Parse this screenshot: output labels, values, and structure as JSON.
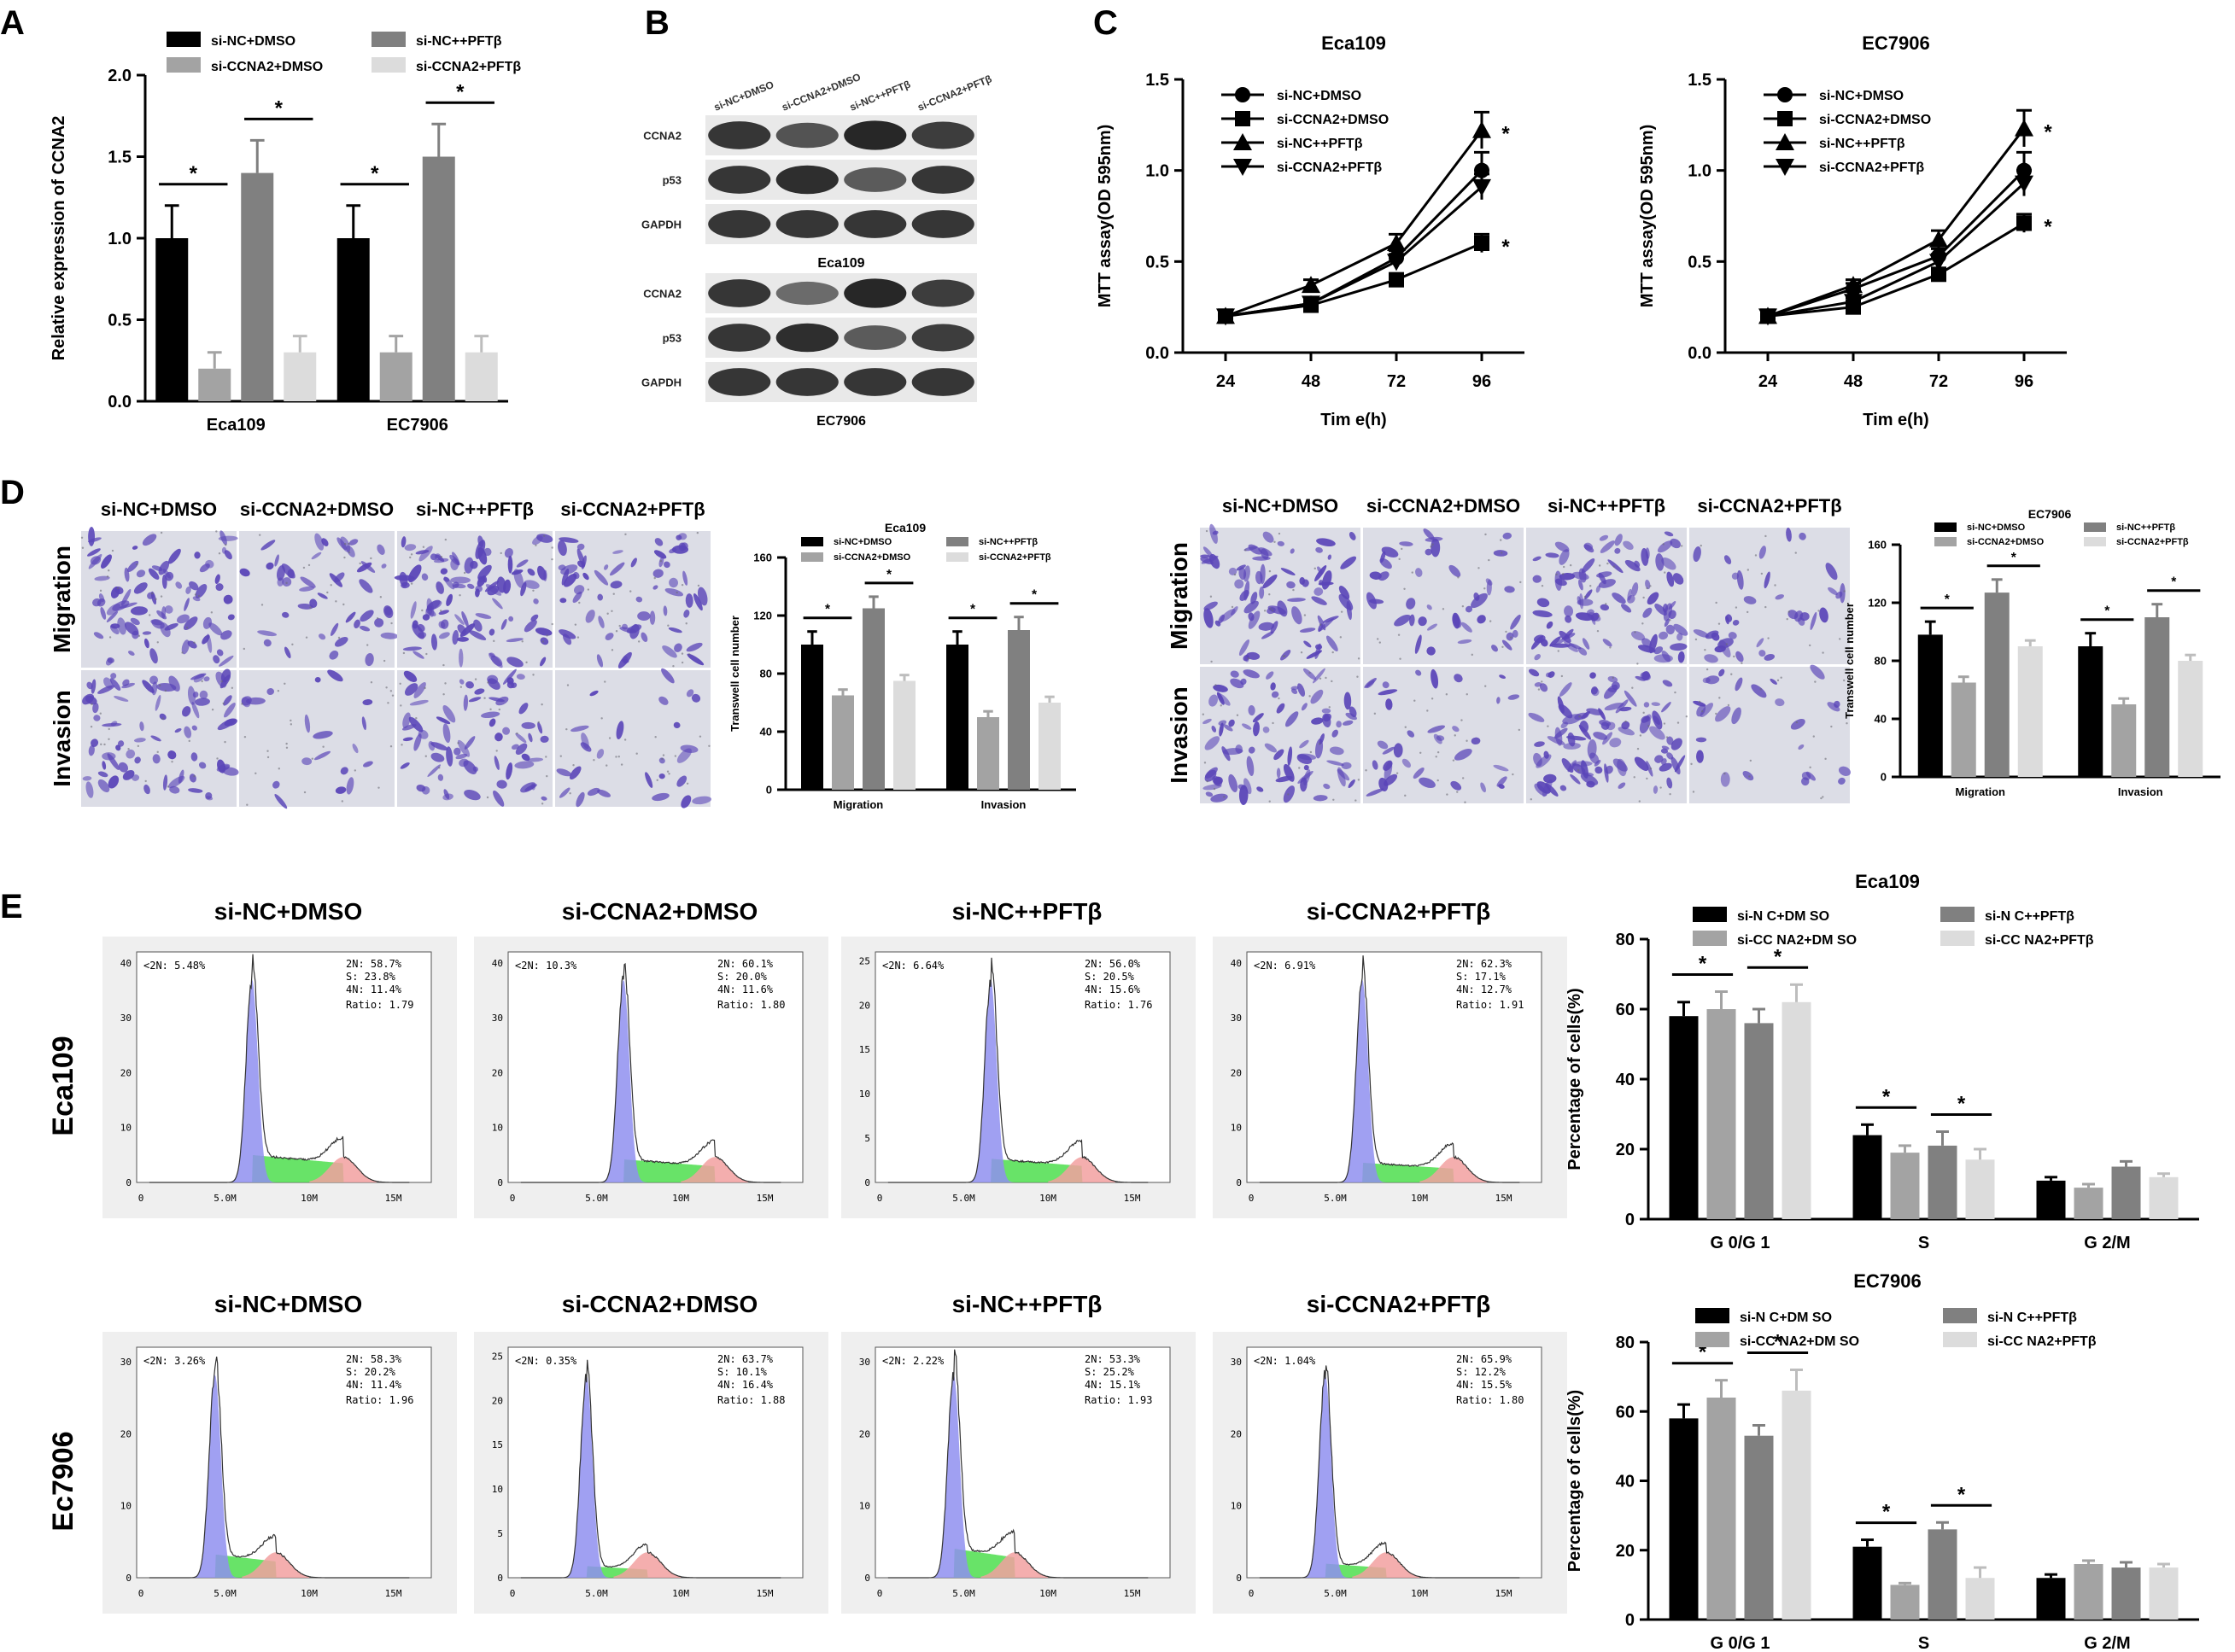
{
  "panel_labels": [
    "A",
    "B",
    "C",
    "D",
    "E"
  ],
  "colors": {
    "si_nc_dmso": "#000000",
    "si_ccna2_dmso": "#a3a3a3",
    "si_nc_pft": "#808080",
    "si_ccna2_pft": "#dcdcdc",
    "g0g1_fill": "#8f8ff0",
    "s_fill": "#4ede4e",
    "g2m_fill": "#f2a0a0",
    "micro_bg": "#dcdde6",
    "micro_stain": "#5a45b8",
    "blot_bg": "#e9e9e9",
    "blot_band": "#1e1e1e"
  },
  "groups": [
    "si-NC+DMSO",
    "si-CCNA2+DMSO",
    "si-NC++PFTβ",
    "si-CCNA2+PFTβ"
  ],
  "western": {
    "lane_labels": [
      "si-NC+DMSO",
      "si-CCNA2+DMSO",
      "si-NC++PFTβ",
      "si-CCNA2+PFTβ"
    ],
    "blocks": [
      {
        "cell": "Eca109",
        "rows": [
          {
            "protein": "CCNA2",
            "intensity": [
              0.85,
              0.65,
              0.95,
              0.8
            ]
          },
          {
            "protein": "p53",
            "intensity": [
              0.85,
              0.9,
              0.6,
              0.85
            ]
          },
          {
            "protein": "GAPDH",
            "intensity": [
              0.85,
              0.85,
              0.85,
              0.85
            ]
          }
        ]
      },
      {
        "cell": "EC7906",
        "rows": [
          {
            "protein": "CCNA2",
            "intensity": [
              0.85,
              0.5,
              0.95,
              0.8
            ]
          },
          {
            "protein": "p53",
            "intensity": [
              0.85,
              0.9,
              0.6,
              0.8
            ]
          },
          {
            "protein": "GAPDH",
            "intensity": [
              0.85,
              0.85,
              0.85,
              0.85
            ]
          }
        ]
      }
    ]
  },
  "micro": {
    "row_labels": [
      "Migration",
      "Invasion"
    ],
    "densities": {
      "Eca109": [
        [
          0.75,
          0.35,
          0.9,
          0.55
        ],
        [
          0.7,
          0.08,
          0.6,
          0.15
        ]
      ],
      "EC7906": [
        [
          0.7,
          0.3,
          0.85,
          0.25
        ],
        [
          0.75,
          0.25,
          0.9,
          0.15
        ]
      ]
    }
  },
  "flow": {
    "x_ticks": [
      "0",
      "5.0M",
      "10M",
      "15M"
    ],
    "subset_label": "<2N:",
    "panels": {
      "Eca109": [
        {
          "sub": "5.48%",
          "n2": "58.7%",
          "s": "23.8%",
          "n4": "11.4%",
          "ratio": "1.79",
          "yticks": [
            "0",
            "10",
            "20",
            "30",
            "40"
          ],
          "ymax": 42
        },
        {
          "sub": "10.3%",
          "n2": "60.1%",
          "s": "20.0%",
          "n4": "11.6%",
          "ratio": "1.80",
          "yticks": [
            "0",
            "10",
            "20",
            "30",
            "40"
          ],
          "ymax": 42
        },
        {
          "sub": "6.64%",
          "n2": "56.0%",
          "s": "20.5%",
          "n4": "15.6%",
          "ratio": "1.76",
          "yticks": [
            "0",
            "5",
            "10",
            "15",
            "20",
            "25"
          ],
          "ymax": 26
        },
        {
          "sub": "6.91%",
          "n2": "62.3%",
          "s": "17.1%",
          "n4": "12.7%",
          "ratio": "1.91",
          "yticks": [
            "0",
            "10",
            "20",
            "30",
            "40"
          ],
          "ymax": 42
        }
      ],
      "EC7906": [
        {
          "sub": "3.26%",
          "n2": "58.3%",
          "s": "20.2%",
          "n4": "11.4%",
          "ratio": "1.96",
          "yticks": [
            "0",
            "10",
            "20",
            "30"
          ],
          "ymax": 32
        },
        {
          "sub": "0.35%",
          "n2": "63.7%",
          "s": "10.1%",
          "n4": "16.4%",
          "ratio": "1.88",
          "yticks": [
            "0",
            "5",
            "10",
            "15",
            "20",
            "25"
          ],
          "ymax": 26
        },
        {
          "sub": "2.22%",
          "n2": "53.3%",
          "s": "25.2%",
          "n4": "15.1%",
          "ratio": "1.93",
          "yticks": [
            "0",
            "10",
            "20",
            "30"
          ],
          "ymax": 32
        },
        {
          "sub": "1.04%",
          "n2": "65.9%",
          "s": "12.2%",
          "n4": "15.5%",
          "ratio": "1.80",
          "yticks": [
            "0",
            "10",
            "20",
            "30"
          ],
          "ymax": 32
        }
      ]
    },
    "row_labels": {
      "Eca109": "Eca109",
      "EC7906": "Ec7906"
    }
  },
  "chart_data": [
    {
      "id": "A",
      "type": "bar",
      "title": "",
      "ylabel": "Relative  expression  of  CCNA2",
      "xlabel": "",
      "categories": [
        "Eca109",
        "EC7906"
      ],
      "series": [
        {
          "name": "si-NC+DMSO",
          "values": [
            1.0,
            1.0
          ],
          "errors": [
            0.2,
            0.2
          ]
        },
        {
          "name": "si-CCNA2+DMSO",
          "values": [
            0.2,
            0.3
          ],
          "errors": [
            0.1,
            0.1
          ]
        },
        {
          "name": "si-NC++PFTβ",
          "values": [
            1.4,
            1.5
          ],
          "errors": [
            0.2,
            0.2
          ]
        },
        {
          "name": "si-CCNA2+PFTβ",
          "values": [
            0.3,
            0.3
          ],
          "errors": [
            0.1,
            0.1
          ]
        }
      ],
      "ylim": [
        0,
        2.0
      ],
      "yticks": [
        "0.0",
        "0.5",
        "1.0",
        "1.5",
        "2.0"
      ],
      "significance": [
        [
          0,
          0,
          1,
          "*"
        ],
        [
          0,
          2,
          3,
          "*"
        ],
        [
          1,
          0,
          1,
          "*"
        ],
        [
          1,
          2,
          3,
          "*"
        ]
      ],
      "legend": "top"
    },
    {
      "id": "C1",
      "type": "line",
      "title": "Eca109",
      "xlabel": "Tim e(h)",
      "ylabel": "MTT  assay(OD  595nm)",
      "x": [
        "24",
        "48",
        "72",
        "96"
      ],
      "series": [
        {
          "name": "si-NC+DMSO",
          "marker": "circle",
          "values": [
            0.2,
            0.27,
            0.52,
            1.0
          ],
          "errors": [
            0.01,
            0.02,
            0.04,
            0.1
          ]
        },
        {
          "name": "si-CCNA2+DMSO",
          "marker": "square",
          "values": [
            0.2,
            0.26,
            0.4,
            0.6
          ],
          "errors": [
            0.01,
            0.02,
            0.03,
            0.05
          ]
        },
        {
          "name": "si-NC++PFTβ",
          "marker": "triangle",
          "values": [
            0.2,
            0.37,
            0.6,
            1.22
          ],
          "errors": [
            0.01,
            0.03,
            0.05,
            0.1
          ]
        },
        {
          "name": "si-CCNA2+PFTβ",
          "marker": "triangle-down",
          "values": [
            0.2,
            0.27,
            0.5,
            0.91
          ],
          "errors": [
            0.01,
            0.02,
            0.04,
            0.07
          ]
        }
      ],
      "ylim": [
        0,
        1.5
      ],
      "yticks": [
        "0.0",
        "0.5",
        "1.0",
        "1.5"
      ],
      "annotations": [
        {
          "series": 2,
          "text": "*"
        },
        {
          "series": 1,
          "text": "*"
        }
      ],
      "legend": "top-left"
    },
    {
      "id": "C2",
      "type": "line",
      "title": "EC7906",
      "xlabel": "Tim e(h)",
      "ylabel": "MTT  assay(OD  595nm)",
      "x": [
        "24",
        "48",
        "72",
        "96"
      ],
      "series": [
        {
          "name": "si-NC+DMSO",
          "marker": "circle",
          "values": [
            0.2,
            0.35,
            0.53,
            1.0
          ],
          "errors": [
            0.01,
            0.03,
            0.04,
            0.1
          ]
        },
        {
          "name": "si-CCNA2+DMSO",
          "marker": "square",
          "values": [
            0.2,
            0.25,
            0.43,
            0.71
          ],
          "errors": [
            0.01,
            0.02,
            0.03,
            0.05
          ]
        },
        {
          "name": "si-NC++PFTβ",
          "marker": "triangle",
          "values": [
            0.2,
            0.37,
            0.62,
            1.23
          ],
          "errors": [
            0.01,
            0.03,
            0.05,
            0.1
          ]
        },
        {
          "name": "si-CCNA2+PFTβ",
          "marker": "triangle-down",
          "values": [
            0.2,
            0.28,
            0.5,
            0.93
          ],
          "errors": [
            0.01,
            0.02,
            0.04,
            0.07
          ]
        }
      ],
      "ylim": [
        0,
        1.5
      ],
      "yticks": [
        "0.0",
        "0.5",
        "1.0",
        "1.5"
      ],
      "annotations": [
        {
          "series": 2,
          "text": "*"
        },
        {
          "series": 1,
          "text": "*"
        }
      ],
      "legend": "top-left"
    },
    {
      "id": "D1",
      "type": "bar",
      "title": "Eca109",
      "ylabel": "Transwell cell number",
      "xlabel": "",
      "categories": [
        "Migration",
        "Invasion"
      ],
      "series": [
        {
          "name": "si-NC+DMSO",
          "values": [
            100,
            100
          ],
          "errors": [
            9,
            9
          ]
        },
        {
          "name": "si-CCNA2+DMSO",
          "values": [
            65,
            50
          ],
          "errors": [
            4,
            4
          ]
        },
        {
          "name": "si-NC++PFTβ",
          "values": [
            125,
            110
          ],
          "errors": [
            8,
            9
          ]
        },
        {
          "name": "si-CCNA2+PFTβ",
          "values": [
            75,
            60
          ],
          "errors": [
            4,
            4
          ]
        }
      ],
      "ylim": [
        0,
        160
      ],
      "yticks": [
        "0",
        "40",
        "80",
        "120",
        "160"
      ],
      "significance": [
        [
          0,
          0,
          1,
          "*"
        ],
        [
          0,
          2,
          3,
          "*"
        ],
        [
          1,
          0,
          1,
          "*"
        ],
        [
          1,
          2,
          3,
          "*"
        ]
      ],
      "legend": "top"
    },
    {
      "id": "D2",
      "type": "bar",
      "title": "EC7906",
      "ylabel": "Transwell cell number",
      "xlabel": "",
      "categories": [
        "Migration",
        "Invasion"
      ],
      "series": [
        {
          "name": "si-NC+DMSO",
          "values": [
            98,
            90
          ],
          "errors": [
            9,
            9
          ]
        },
        {
          "name": "si-CCNA2+DMSO",
          "values": [
            65,
            50
          ],
          "errors": [
            4,
            4
          ]
        },
        {
          "name": "si-NC++PFTβ",
          "values": [
            127,
            110
          ],
          "errors": [
            9,
            9
          ]
        },
        {
          "name": "si-CCNA2+PFTβ",
          "values": [
            90,
            80
          ],
          "errors": [
            4,
            4
          ]
        }
      ],
      "ylim": [
        0,
        160
      ],
      "yticks": [
        "0",
        "40",
        "80",
        "120",
        "160"
      ],
      "significance": [
        [
          0,
          0,
          1,
          "*"
        ],
        [
          0,
          2,
          3,
          "*"
        ],
        [
          1,
          0,
          1,
          "*"
        ],
        [
          1,
          2,
          3,
          "*"
        ]
      ],
      "legend": "top"
    },
    {
      "id": "E1",
      "type": "bar",
      "title": "Eca109",
      "ylabel": "Percentage of cells(%)",
      "xlabel": "",
      "categories": [
        "G 0/G 1",
        "S",
        "G 2/M"
      ],
      "series": [
        {
          "name": "si-N C+DM SO",
          "values": [
            58,
            24,
            11
          ],
          "errors": [
            4,
            3,
            1
          ]
        },
        {
          "name": "si-CC NA2+DM SO",
          "values": [
            60,
            19,
            9
          ],
          "errors": [
            5,
            2,
            1
          ]
        },
        {
          "name": "si-N C++PFTβ",
          "values": [
            56,
            21,
            15
          ],
          "errors": [
            4,
            4,
            1.5
          ]
        },
        {
          "name": "si-CC NA2+PFTβ",
          "values": [
            62,
            17,
            12
          ],
          "errors": [
            5,
            3,
            1
          ]
        }
      ],
      "ylim": [
        0,
        80
      ],
      "yticks": [
        "0",
        "20",
        "40",
        "60",
        "80"
      ],
      "significance": [
        [
          0,
          0,
          1,
          "*"
        ],
        [
          0,
          2,
          3,
          "*"
        ],
        [
          1,
          0,
          1,
          "*"
        ],
        [
          1,
          2,
          3,
          "*"
        ]
      ],
      "legend": "top"
    },
    {
      "id": "E2",
      "type": "bar",
      "title": "EC7906",
      "ylabel": "Percentage of cells(%)",
      "xlabel": "",
      "categories": [
        "G 0/G 1",
        "S",
        "G 2/M"
      ],
      "series": [
        {
          "name": "si-N C+DM SO",
          "values": [
            58,
            21,
            12
          ],
          "errors": [
            4,
            2,
            1
          ]
        },
        {
          "name": "si-CC NA2+DM SO",
          "values": [
            64,
            10,
            16
          ],
          "errors": [
            5,
            0.5,
            1
          ]
        },
        {
          "name": "si-N C++PFTβ",
          "values": [
            53,
            26,
            15
          ],
          "errors": [
            3,
            2,
            1.5
          ]
        },
        {
          "name": "si-CC NA2+PFTβ",
          "values": [
            66,
            12,
            15
          ],
          "errors": [
            6,
            3,
            1
          ]
        }
      ],
      "ylim": [
        0,
        80
      ],
      "yticks": [
        "0",
        "20",
        "40",
        "60",
        "80"
      ],
      "significance": [
        [
          0,
          0,
          1,
          "*"
        ],
        [
          0,
          2,
          3,
          "*"
        ],
        [
          1,
          0,
          1,
          "*"
        ],
        [
          1,
          2,
          3,
          "*"
        ]
      ],
      "legend": "top"
    }
  ]
}
